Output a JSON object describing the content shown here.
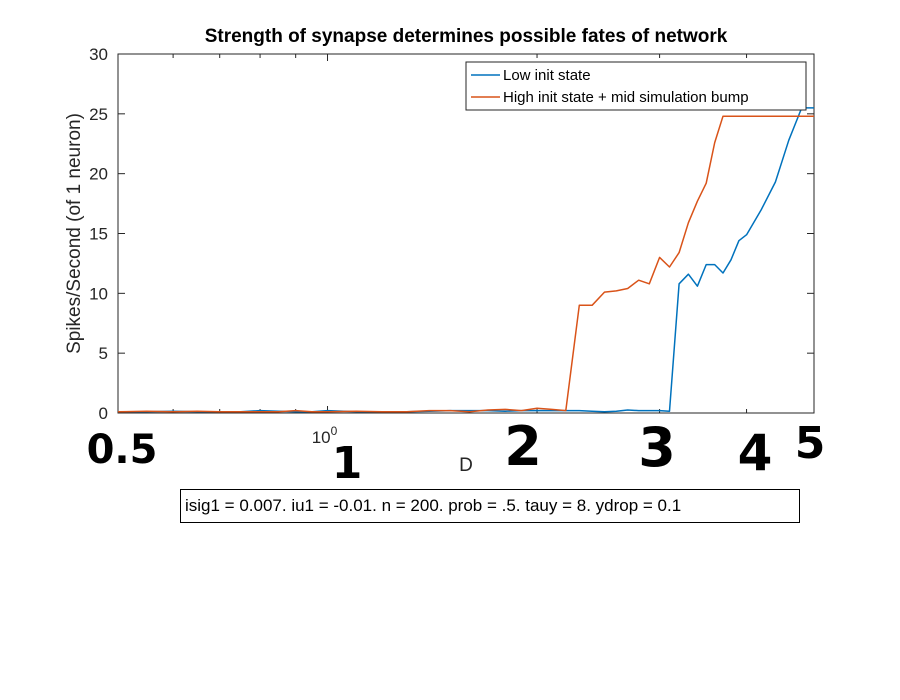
{
  "chart_data": {
    "type": "line",
    "title": "Strength of synapse determines possible fates of network",
    "xlabel": "D",
    "ylabel": "Spikes/Second (of 1 neuron)",
    "xscale": "log",
    "xlim": [
      0.5,
      5.0
    ],
    "ylim": [
      0,
      30
    ],
    "yticks": [
      0,
      5,
      10,
      15,
      20,
      25,
      30
    ],
    "xtick_label": {
      "base": "10",
      "exponent": "0",
      "value": 1
    },
    "grid": false,
    "legend_position": "top-right",
    "series": [
      {
        "name": "Low init state",
        "color": "#0072BD",
        "x": [
          0.5,
          0.55,
          0.6,
          0.65,
          0.7,
          0.75,
          0.8,
          0.85,
          0.9,
          0.95,
          1.0,
          1.1,
          1.2,
          1.3,
          1.4,
          1.5,
          1.6,
          1.7,
          1.8,
          1.9,
          2.0,
          2.1,
          2.2,
          2.3,
          2.4,
          2.5,
          2.6,
          2.7,
          2.8,
          2.9,
          3.0,
          3.1,
          3.2,
          3.3,
          3.4,
          3.5,
          3.6,
          3.7,
          3.8,
          3.9,
          4.0,
          4.2,
          4.4,
          4.6,
          4.8,
          5.0
        ],
        "y": [
          0.1,
          0.1,
          0.15,
          0.1,
          0.1,
          0.1,
          0.2,
          0.15,
          0.1,
          0.1,
          0.2,
          0.1,
          0.1,
          0.1,
          0.15,
          0.2,
          0.2,
          0.2,
          0.15,
          0.2,
          0.2,
          0.2,
          0.2,
          0.2,
          0.15,
          0.1,
          0.15,
          0.25,
          0.2,
          0.2,
          0.2,
          0.15,
          10.8,
          11.6,
          10.6,
          12.4,
          12.4,
          11.7,
          12.8,
          14.4,
          14.9,
          17.0,
          19.3,
          22.8,
          25.5,
          25.5
        ]
      },
      {
        "name": "High init state + mid simulation bump",
        "color": "#D95319",
        "x": [
          0.5,
          0.55,
          0.6,
          0.65,
          0.7,
          0.75,
          0.8,
          0.85,
          0.9,
          0.95,
          1.0,
          1.1,
          1.2,
          1.3,
          1.4,
          1.5,
          1.6,
          1.7,
          1.8,
          1.9,
          2.0,
          2.1,
          2.2,
          2.3,
          2.4,
          2.5,
          2.6,
          2.7,
          2.8,
          2.9,
          3.0,
          3.1,
          3.2,
          3.3,
          3.4,
          3.5,
          3.6,
          3.7,
          3.8,
          3.9,
          4.0,
          4.2,
          4.4,
          4.6,
          4.8,
          5.0
        ],
        "y": [
          0.1,
          0.15,
          0.1,
          0.15,
          0.1,
          0.1,
          0.1,
          0.1,
          0.2,
          0.1,
          0.1,
          0.15,
          0.1,
          0.1,
          0.2,
          0.2,
          0.1,
          0.25,
          0.3,
          0.2,
          0.4,
          0.3,
          0.2,
          9.0,
          9.0,
          10.1,
          10.2,
          10.4,
          11.1,
          10.8,
          13.0,
          12.2,
          13.4,
          15.9,
          17.7,
          19.2,
          22.6,
          24.8,
          24.8,
          24.8,
          24.8,
          24.8,
          24.8,
          24.8,
          24.8,
          24.8
        ]
      }
    ],
    "annotation": "isig1 = 0.007. iu1 = -0.01. n = 200. prob = .5. tauy = 8. ydrop = 0.1",
    "handwritten_labels": [
      "0.5",
      "1",
      "2",
      "3",
      "4",
      "5"
    ]
  }
}
